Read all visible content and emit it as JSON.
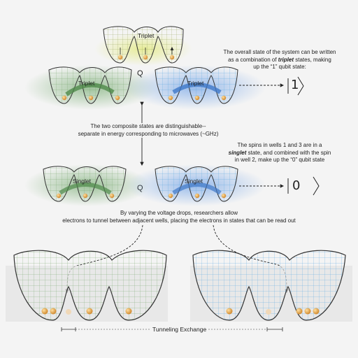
{
  "labels": {
    "triplet": "Triplet",
    "singlet": "Singlet",
    "q": "Q",
    "ket_one": "1",
    "ket_zero": "0",
    "tunneling": "Tunneling Exchange"
  },
  "text": {
    "overall_l1": "The overall state of the system can be written",
    "overall_l2_a": "as a combination of ",
    "overall_l2_b": "triplet",
    "overall_l2_c": " states, making",
    "overall_l3": "up the “1” qubit state:",
    "distinct_l1": "The two composite states are distinguishable--",
    "distinct_l2": "separate in energy corresponding to microwaves (~GHz)",
    "spins_l1": "The spins in wells 1 and 3 are in a",
    "spins_l2_a": "singlet",
    "spins_l2_b": " state, and combined with the spin",
    "spins_l3": "in well 2, make up the “0” qubit state",
    "vary_l1": "By varying the voltage drops, researchers allow",
    "vary_l2": "electrons to tunnel between adjacent wells, placing the electrons in states that can be read out"
  },
  "colors": {
    "green": "#5b9a5a",
    "blue": "#4f8fd6",
    "yellow": "#d9e27a",
    "electron": "#e0a040"
  },
  "icons": [
    "arrow-right-icon",
    "double-arrow-icon",
    "spin-up-arrow-icon",
    "electron-icon",
    "potential-well-icon"
  ]
}
